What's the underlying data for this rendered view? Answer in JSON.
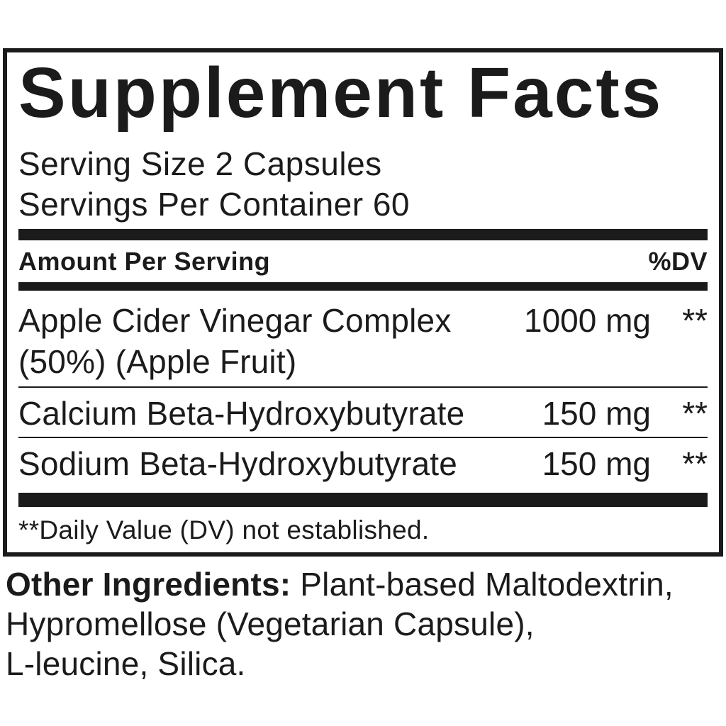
{
  "label": {
    "title": "Supplement Facts",
    "serving_size": "Serving Size 2 Capsules",
    "servings_per_container": "Servings Per Container 60",
    "columns": {
      "amount_header": "Amount Per Serving",
      "dv_header": "%DV"
    },
    "rows": [
      {
        "name": "Apple Cider Vinegar Complex",
        "name2": "(50%) (Apple Fruit)",
        "amount": "1000 mg",
        "dv": "**"
      },
      {
        "name": "Calcium Beta-Hydroxybutyrate",
        "amount": "150 mg",
        "dv": "**"
      },
      {
        "name": "Sodium Beta-Hydroxybutyrate",
        "amount": "150 mg",
        "dv": "**"
      }
    ],
    "footnote": "**Daily Value (DV) not established."
  },
  "other_ingredients": {
    "label": "Other Ingredients:",
    "line1": "Plant-based Maltodextrin,",
    "line2": "Hypromellose (Vegetarian Capsule),",
    "line3": "L-leucine, Silica."
  },
  "colors": {
    "ink": "#1b1b1b",
    "background": "#ffffff"
  }
}
